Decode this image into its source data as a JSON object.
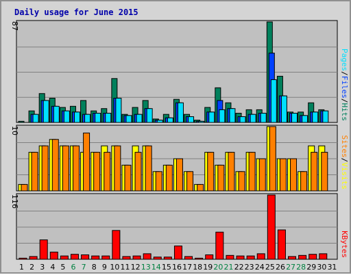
{
  "chart_data": {
    "type": "bar",
    "title": "Daily usage for June 2015",
    "categories": [
      "1",
      "2",
      "3",
      "4",
      "5",
      "6",
      "7",
      "8",
      "9",
      "10",
      "11",
      "12",
      "13",
      "14",
      "15",
      "16",
      "17",
      "18",
      "19",
      "20",
      "21",
      "22",
      "23",
      "24",
      "25",
      "26",
      "27",
      "28",
      "29",
      "30",
      "31"
    ],
    "weekend_days": [
      "6",
      "7",
      "13",
      "14",
      "20",
      "21",
      "27",
      "28"
    ],
    "weekend_color": "#008040",
    "weekday_color": "#000000",
    "panels": [
      {
        "id": "hits_files_pages",
        "ymax_label": "87",
        "ylim": [
          0,
          87
        ],
        "legend": [
          {
            "text": "Pages",
            "color": "#00e0ff"
          },
          {
            "text": "Files",
            "color": "#0040ff"
          },
          {
            "text": "Hits",
            "color": "#00805c"
          }
        ],
        "separator_color": "#000000",
        "series": [
          {
            "name": "Hits",
            "color": "#00805c",
            "values": [
              1,
              10,
              25,
              21,
              13,
              14,
              19,
              10,
              12,
              38,
              7,
              13,
              19,
              3,
              7,
              20,
              7,
              2,
              13,
              30,
              17,
              8,
              11,
              11,
              87,
              40,
              9,
              9,
              17,
              11,
              null
            ]
          },
          {
            "name": "Files",
            "color": "#0040ff",
            "values": [
              0,
              7,
              19,
              14,
              10,
              9,
              7,
              8,
              8,
              21,
              6,
              7,
              12,
              2,
              4,
              17,
              5,
              1,
              9,
              19,
              12,
              5,
              7,
              8,
              60,
              23,
              8,
              6,
              9,
              10,
              null
            ]
          },
          {
            "name": "Pages",
            "color": "#00e0ff",
            "values": [
              0,
              7,
              19,
              14,
              10,
              9,
              7,
              8,
              8,
              21,
              6,
              7,
              12,
              2,
              4,
              17,
              5,
              1,
              9,
              11,
              12,
              5,
              7,
              8,
              37,
              23,
              8,
              6,
              9,
              10,
              null
            ]
          }
        ]
      },
      {
        "id": "visits_sites",
        "ymax_label": "10",
        "ylim": [
          0,
          10
        ],
        "legend": [
          {
            "text": "Sites",
            "color": "#ff8000"
          },
          {
            "text": "Visits",
            "color": "#ffff00"
          }
        ],
        "separator_color": "#000000",
        "series": [
          {
            "name": "Visits",
            "color": "#ffff00",
            "values": [
              1,
              6,
              7,
              8,
              7,
              7,
              6,
              6,
              7,
              7,
              4,
              7,
              7,
              3,
              4,
              5,
              3,
              1,
              6,
              4,
              6,
              3,
              6,
              5,
              10,
              5,
              5,
              3,
              7,
              7,
              null
            ]
          },
          {
            "name": "Sites",
            "color": "#ff8000",
            "values": [
              1,
              6,
              7,
              8,
              7,
              7,
              9,
              6,
              6,
              7,
              4,
              6,
              7,
              3,
              4,
              5,
              3,
              1,
              6,
              4,
              6,
              3,
              6,
              5,
              10,
              5,
              5,
              3,
              6,
              6,
              null
            ]
          }
        ]
      },
      {
        "id": "kbytes",
        "ymax_label": "116",
        "ylim": [
          0,
          116
        ],
        "legend": [
          {
            "text": "KBytes",
            "color": "#ff0000"
          }
        ],
        "separator_color": "#000000",
        "series": [
          {
            "name": "KBytes",
            "color": "#ff0000",
            "values": [
              2,
              5,
              35,
              13,
              6,
              9,
              8,
              6,
              6,
              52,
              5,
              6,
              10,
              4,
              4,
              24,
              5,
              2,
              8,
              49,
              7,
              6,
              6,
              10,
              116,
              53,
              5,
              7,
              9,
              10,
              null
            ]
          }
        ]
      }
    ]
  }
}
